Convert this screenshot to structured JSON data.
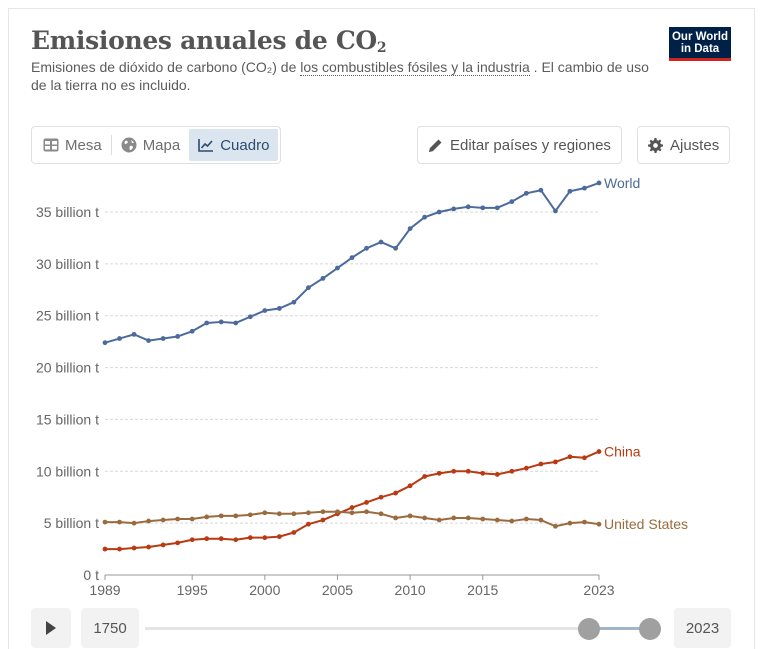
{
  "header": {
    "title_main": "Emisiones anuales de CO",
    "title_sub": "2",
    "subtitle_before": "Emisiones de dióxido de carbono (CO₂) de ",
    "subtitle_link": "los combustibles fósiles y la industria",
    "subtitle_after": " . El cambio de uso de la tierra no es incluido.",
    "logo_line1": "Our World",
    "logo_line2": "in Data"
  },
  "tabs": [
    {
      "label": "Mesa",
      "icon": "table-icon",
      "active": false
    },
    {
      "label": "Mapa",
      "icon": "globe-icon",
      "active": false
    },
    {
      "label": "Cuadro",
      "icon": "line-chart-icon",
      "active": true
    }
  ],
  "buttons": {
    "edit_label": "Editar países y regiones",
    "settings_label": "Ajustes"
  },
  "timeline": {
    "start_year": "1750",
    "end_year": "2023",
    "selected_start": 1989,
    "selected_end": 2023
  },
  "colors": {
    "world": "#4c6a9c",
    "china": "#b93a12",
    "united_states": "#9a6b3e",
    "brand": "#002147",
    "brand_accent": "#ce261e"
  },
  "chart_data": {
    "type": "line",
    "title": "Emisiones anuales de CO₂",
    "xlabel": "",
    "ylabel": "",
    "x": [
      1989,
      1990,
      1991,
      1992,
      1993,
      1994,
      1995,
      1996,
      1997,
      1998,
      1999,
      2000,
      2001,
      2002,
      2003,
      2004,
      2005,
      2006,
      2007,
      2008,
      2009,
      2010,
      2011,
      2012,
      2013,
      2014,
      2015,
      2016,
      2017,
      2018,
      2019,
      2020,
      2021,
      2022,
      2023
    ],
    "xticks": [
      1989,
      1995,
      2000,
      2005,
      2010,
      2015,
      2023
    ],
    "xtick_labels": [
      "1989",
      "1995",
      "2000",
      "2005",
      "2010",
      "2015",
      "2023"
    ],
    "ylim": [
      0,
      37.8
    ],
    "yticks": [
      0,
      5,
      10,
      15,
      20,
      25,
      30,
      35
    ],
    "ytick_labels": [
      "0 t",
      "5 billion t",
      "10 billion t",
      "15 billion t",
      "20 billion t",
      "25 billion t",
      "30 billion t",
      "35 billion t"
    ],
    "grid": true,
    "legend": "line-end labels",
    "series": [
      {
        "name": "World",
        "color": "#4c6a9c",
        "values": [
          22.4,
          22.8,
          23.2,
          22.6,
          22.8,
          23.0,
          23.5,
          24.3,
          24.4,
          24.3,
          24.9,
          25.5,
          25.7,
          26.3,
          27.7,
          28.6,
          29.6,
          30.6,
          31.5,
          32.1,
          31.5,
          33.4,
          34.5,
          35.0,
          35.3,
          35.5,
          35.4,
          35.4,
          36.0,
          36.8,
          37.1,
          35.1,
          37.0,
          37.3,
          37.8
        ]
      },
      {
        "name": "China",
        "color": "#b93a12",
        "values": [
          2.5,
          2.5,
          2.6,
          2.7,
          2.9,
          3.1,
          3.4,
          3.5,
          3.5,
          3.4,
          3.6,
          3.6,
          3.7,
          4.1,
          4.9,
          5.3,
          5.9,
          6.5,
          7.0,
          7.5,
          7.9,
          8.6,
          9.5,
          9.8,
          10.0,
          10.0,
          9.8,
          9.7,
          10.0,
          10.3,
          10.7,
          10.9,
          11.4,
          11.3,
          11.9
        ]
      },
      {
        "name": "United States",
        "color": "#9a6b3e",
        "values": [
          5.1,
          5.1,
          5.0,
          5.2,
          5.3,
          5.4,
          5.4,
          5.6,
          5.7,
          5.7,
          5.8,
          6.0,
          5.9,
          5.9,
          6.0,
          6.1,
          6.1,
          6.0,
          6.1,
          5.9,
          5.5,
          5.7,
          5.5,
          5.3,
          5.5,
          5.5,
          5.4,
          5.3,
          5.2,
          5.4,
          5.3,
          4.7,
          5.0,
          5.1,
          4.9
        ]
      }
    ]
  }
}
